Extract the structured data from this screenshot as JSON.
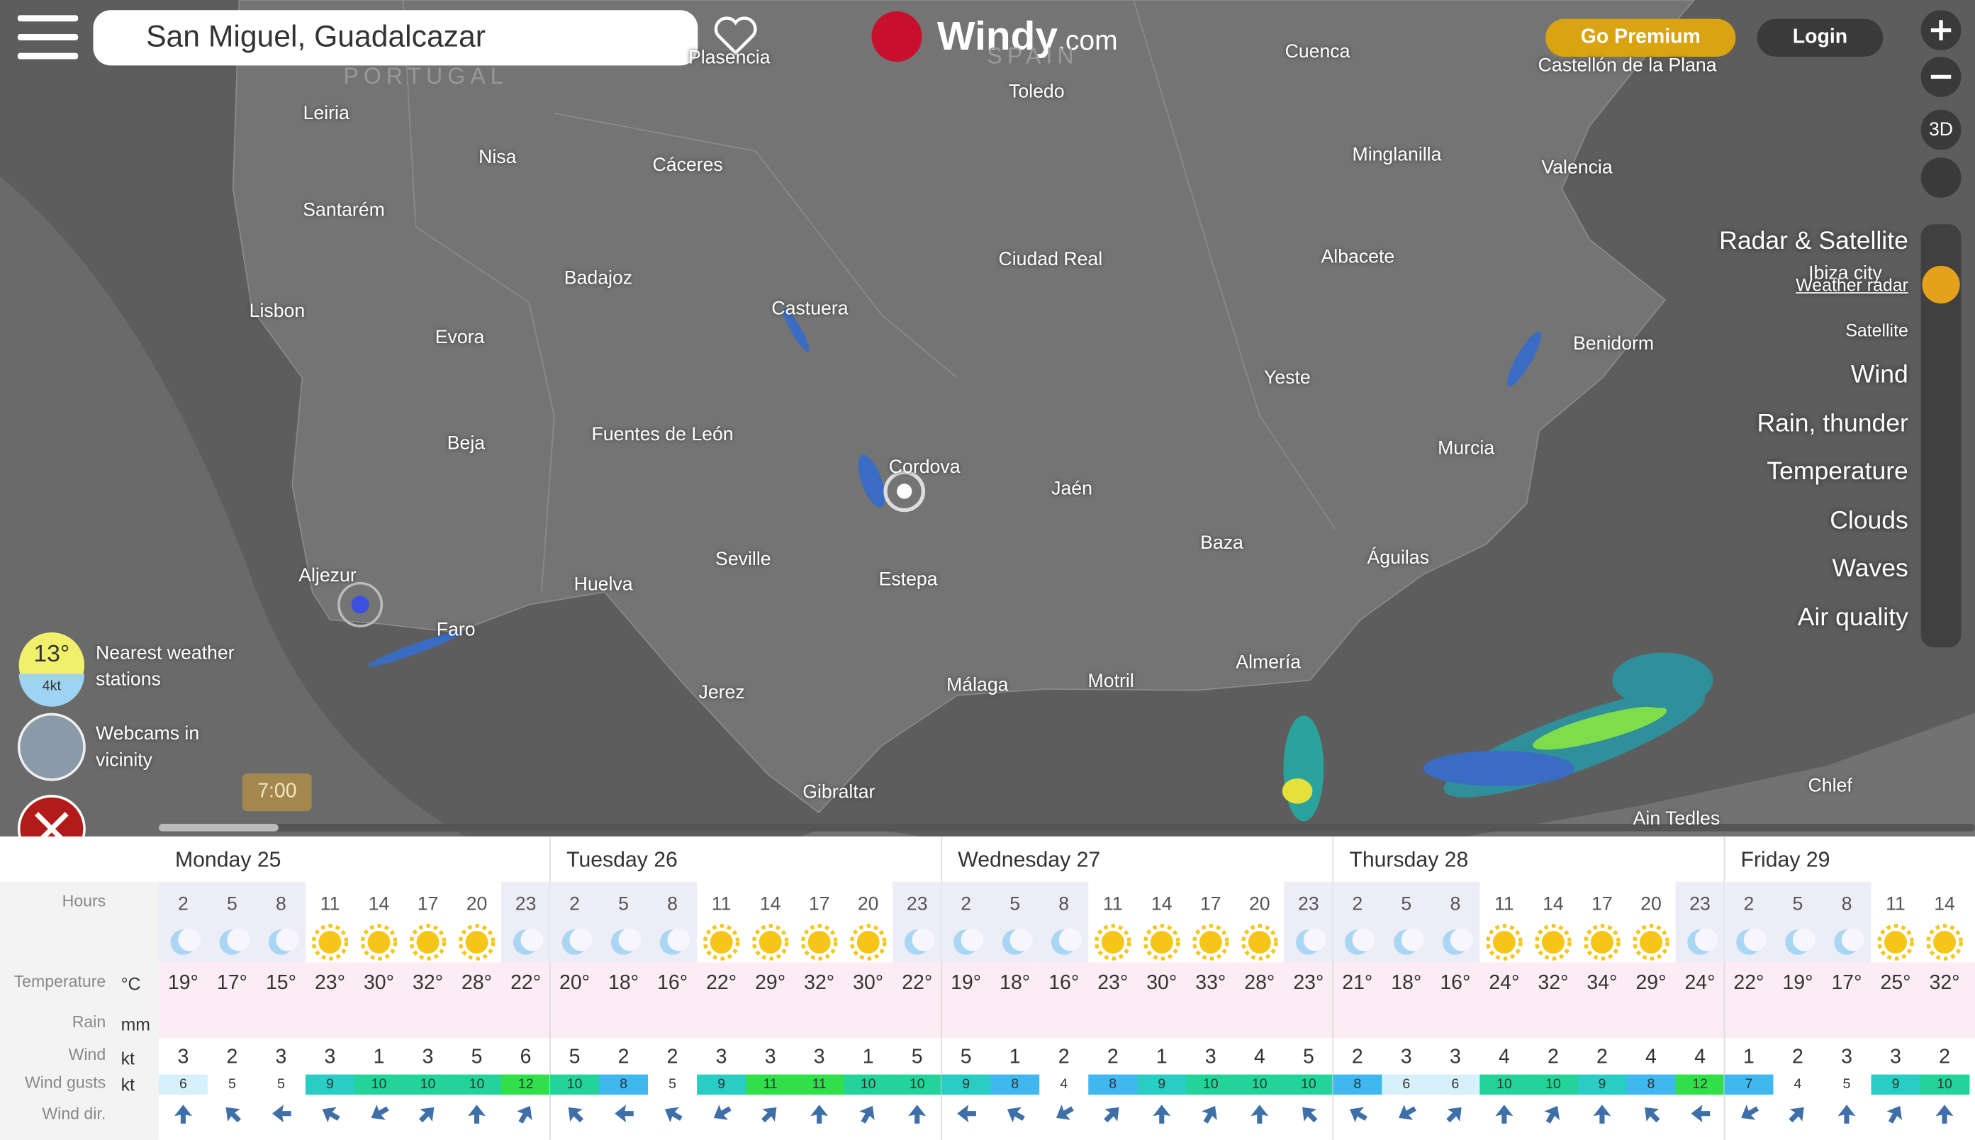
{
  "header": {
    "search": "San Miguel, Guadalcazar",
    "brand": "Windy",
    "brand_suffix": ".com",
    "premium": "Go Premium",
    "login": "Login",
    "three_d": "3D"
  },
  "map": {
    "labels": [
      "PORTUGAL",
      "SPAIN",
      "Plasencia",
      "Leiria",
      "Toledo",
      "Cuenca",
      "Castellón de la Plana",
      "Nisa",
      "Cáceres",
      "Minglanilla",
      "Valencia",
      "Santarém",
      "Badajoz",
      "Castuera",
      "Ciudad Real",
      "Albacete",
      "Lisbon",
      "Evora",
      "Ibiza city",
      "Benidorm",
      "Yeste",
      "Beja",
      "Fuentes de León",
      "Murcia",
      "Cordova",
      "Jaén",
      "Baza",
      "Águilas",
      "Aljezur",
      "Huelva",
      "Seville",
      "Estepa",
      "Faro",
      "Jerez",
      "Málaga",
      "Motril",
      "Almería",
      "Gibraltar",
      "Chlef",
      "Ain Tedles"
    ],
    "timeline": "7:00"
  },
  "layers": [
    "Radar & Satellite",
    "Weather radar",
    "Satellite",
    "Wind",
    "Rain, thunder",
    "Temperature",
    "Clouds",
    "Waves",
    "Air quality"
  ],
  "widgets": {
    "temp": "13°",
    "wind": "4kt",
    "stations": "Nearest weather stations",
    "webcams": "Webcams in vicinity"
  },
  "forecast": {
    "row_labels": {
      "hours": "Hours",
      "temperature": "Temperature",
      "temp_unit": "°C",
      "rain": "Rain",
      "rain_unit": "mm",
      "wind": "Wind",
      "wind_unit": "kt",
      "gusts": "Wind gusts",
      "gusts_unit": "kt",
      "dir": "Wind dir."
    },
    "days": [
      {
        "name": "Monday 25",
        "hours": [
          2,
          5,
          8,
          11,
          14,
          17,
          20,
          23
        ],
        "temps": [
          "19°",
          "17°",
          "15°",
          "23°",
          "30°",
          "32°",
          "28°",
          "22°"
        ],
        "wind": [
          3,
          2,
          3,
          3,
          1,
          3,
          5,
          6
        ],
        "gusts": [
          6,
          5,
          5,
          9,
          10,
          10,
          10,
          12
        ]
      },
      {
        "name": "Tuesday 26",
        "hours": [
          2,
          5,
          8,
          11,
          14,
          17,
          20,
          23
        ],
        "temps": [
          "20°",
          "18°",
          "16°",
          "22°",
          "29°",
          "32°",
          "30°",
          "22°"
        ],
        "wind": [
          5,
          2,
          2,
          3,
          3,
          3,
          1,
          5
        ],
        "gusts": [
          10,
          8,
          5,
          9,
          11,
          11,
          10,
          10
        ]
      },
      {
        "name": "Wednesday 27",
        "hours": [
          2,
          5,
          8,
          11,
          14,
          17,
          20,
          23
        ],
        "temps": [
          "19°",
          "18°",
          "16°",
          "23°",
          "30°",
          "33°",
          "28°",
          "23°"
        ],
        "wind": [
          5,
          1,
          2,
          2,
          1,
          3,
          4,
          5
        ],
        "gusts": [
          9,
          8,
          4,
          8,
          9,
          10,
          10,
          10
        ]
      },
      {
        "name": "Thursday 28",
        "hours": [
          2,
          5,
          8,
          11,
          14,
          17,
          20,
          23
        ],
        "temps": [
          "21°",
          "18°",
          "16°",
          "24°",
          "32°",
          "34°",
          "29°",
          "24°"
        ],
        "wind": [
          2,
          3,
          3,
          4,
          2,
          2,
          4,
          4
        ],
        "gusts": [
          8,
          6,
          6,
          10,
          10,
          9,
          8,
          12
        ]
      },
      {
        "name": "Friday 29",
        "hours": [
          2,
          5,
          8,
          11,
          14
        ],
        "temps": [
          "22°",
          "19°",
          "17°",
          "25°",
          "32°"
        ],
        "wind": [
          1,
          2,
          3,
          3,
          2
        ],
        "gusts": [
          7,
          4,
          5,
          9,
          10
        ]
      }
    ]
  }
}
